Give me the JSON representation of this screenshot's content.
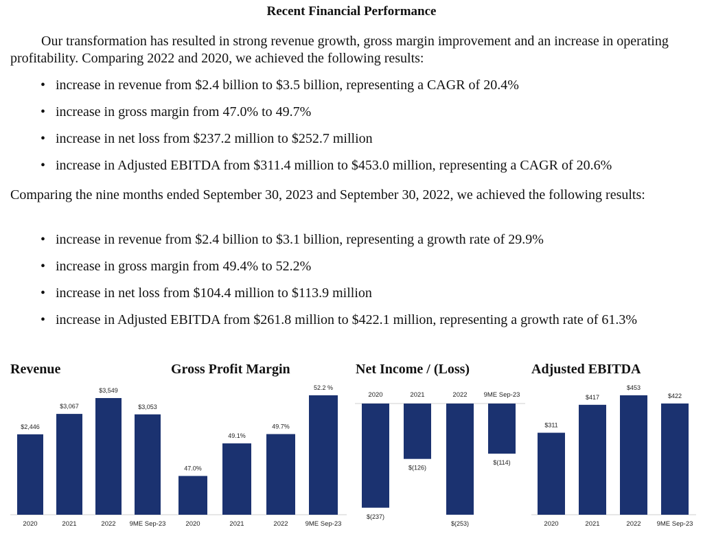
{
  "heading": "Recent Financial Performance",
  "para1": "Our transformation has resulted in strong revenue growth, gross margin improvement and an increase in operating profitability. Comparing 2022 and 2020, we achieved the following results:",
  "bullets1": [
    "increase in revenue from $2.4 billion to $3.5 billion, representing a CAGR of 20.4%",
    "increase in gross margin from 47.0% to 49.7%",
    "increase in net loss from $237.2 million to $252.7 million",
    "increase in Adjusted EBITDA from $311.4 million to $453.0 million, representing a CAGR of 20.6%"
  ],
  "para2": "Comparing the nine months ended September 30, 2023 and September 30, 2022, we achieved the following results:",
  "bullets2": [
    "increase in revenue from $2.4 billion to $3.1 billion, representing a growth rate of 29.9%",
    "increase in gross margin from 49.4% to 52.2%",
    "increase in net loss from $104.4 million to $113.9 million",
    "increase in Adjusted EBITDA from $261.8 million to $422.1 million, representing a growth rate of 61.3%"
  ],
  "colors": {
    "bar": "#1b3270",
    "axis": "#cfcfcf",
    "text": "#222222"
  },
  "chart_data": [
    {
      "type": "bar",
      "title": "Revenue",
      "categories": [
        "2020",
        "2021",
        "2022",
        "9ME Sep-23"
      ],
      "values": [
        2446,
        3067,
        3549,
        3053
      ],
      "labels": [
        "$2,446",
        "$3,067",
        "$3,549",
        "$3,053"
      ],
      "ylim": [
        0,
        3549
      ],
      "grid": false
    },
    {
      "type": "bar",
      "title": "Gross Profit Margin",
      "categories": [
        "2020",
        "2021",
        "2022",
        "9ME Sep-23"
      ],
      "values": [
        47.0,
        49.1,
        49.7,
        52.2
      ],
      "labels": [
        "47.0%",
        "49.1%",
        "49.7%",
        "52.2 %"
      ],
      "ylim": [
        44.5,
        52.2
      ],
      "grid": false
    },
    {
      "type": "bar",
      "title": "Net Income / (Loss)",
      "categories": [
        "2020",
        "2021",
        "2022",
        "9ME Sep-23"
      ],
      "values": [
        -237,
        -126,
        -253,
        -114
      ],
      "labels": [
        "$(237)",
        "$(126)",
        "$(253)",
        "$(114)"
      ],
      "ylim": [
        -253,
        0
      ],
      "grid": false
    },
    {
      "type": "bar",
      "title": "Adjusted EBITDA",
      "categories": [
        "2020",
        "2021",
        "2022",
        "9ME Sep-23"
      ],
      "values": [
        311,
        417,
        453,
        422
      ],
      "labels": [
        "$311",
        "$417",
        "$453",
        "$422"
      ],
      "ylim": [
        0,
        453
      ],
      "grid": false
    }
  ]
}
